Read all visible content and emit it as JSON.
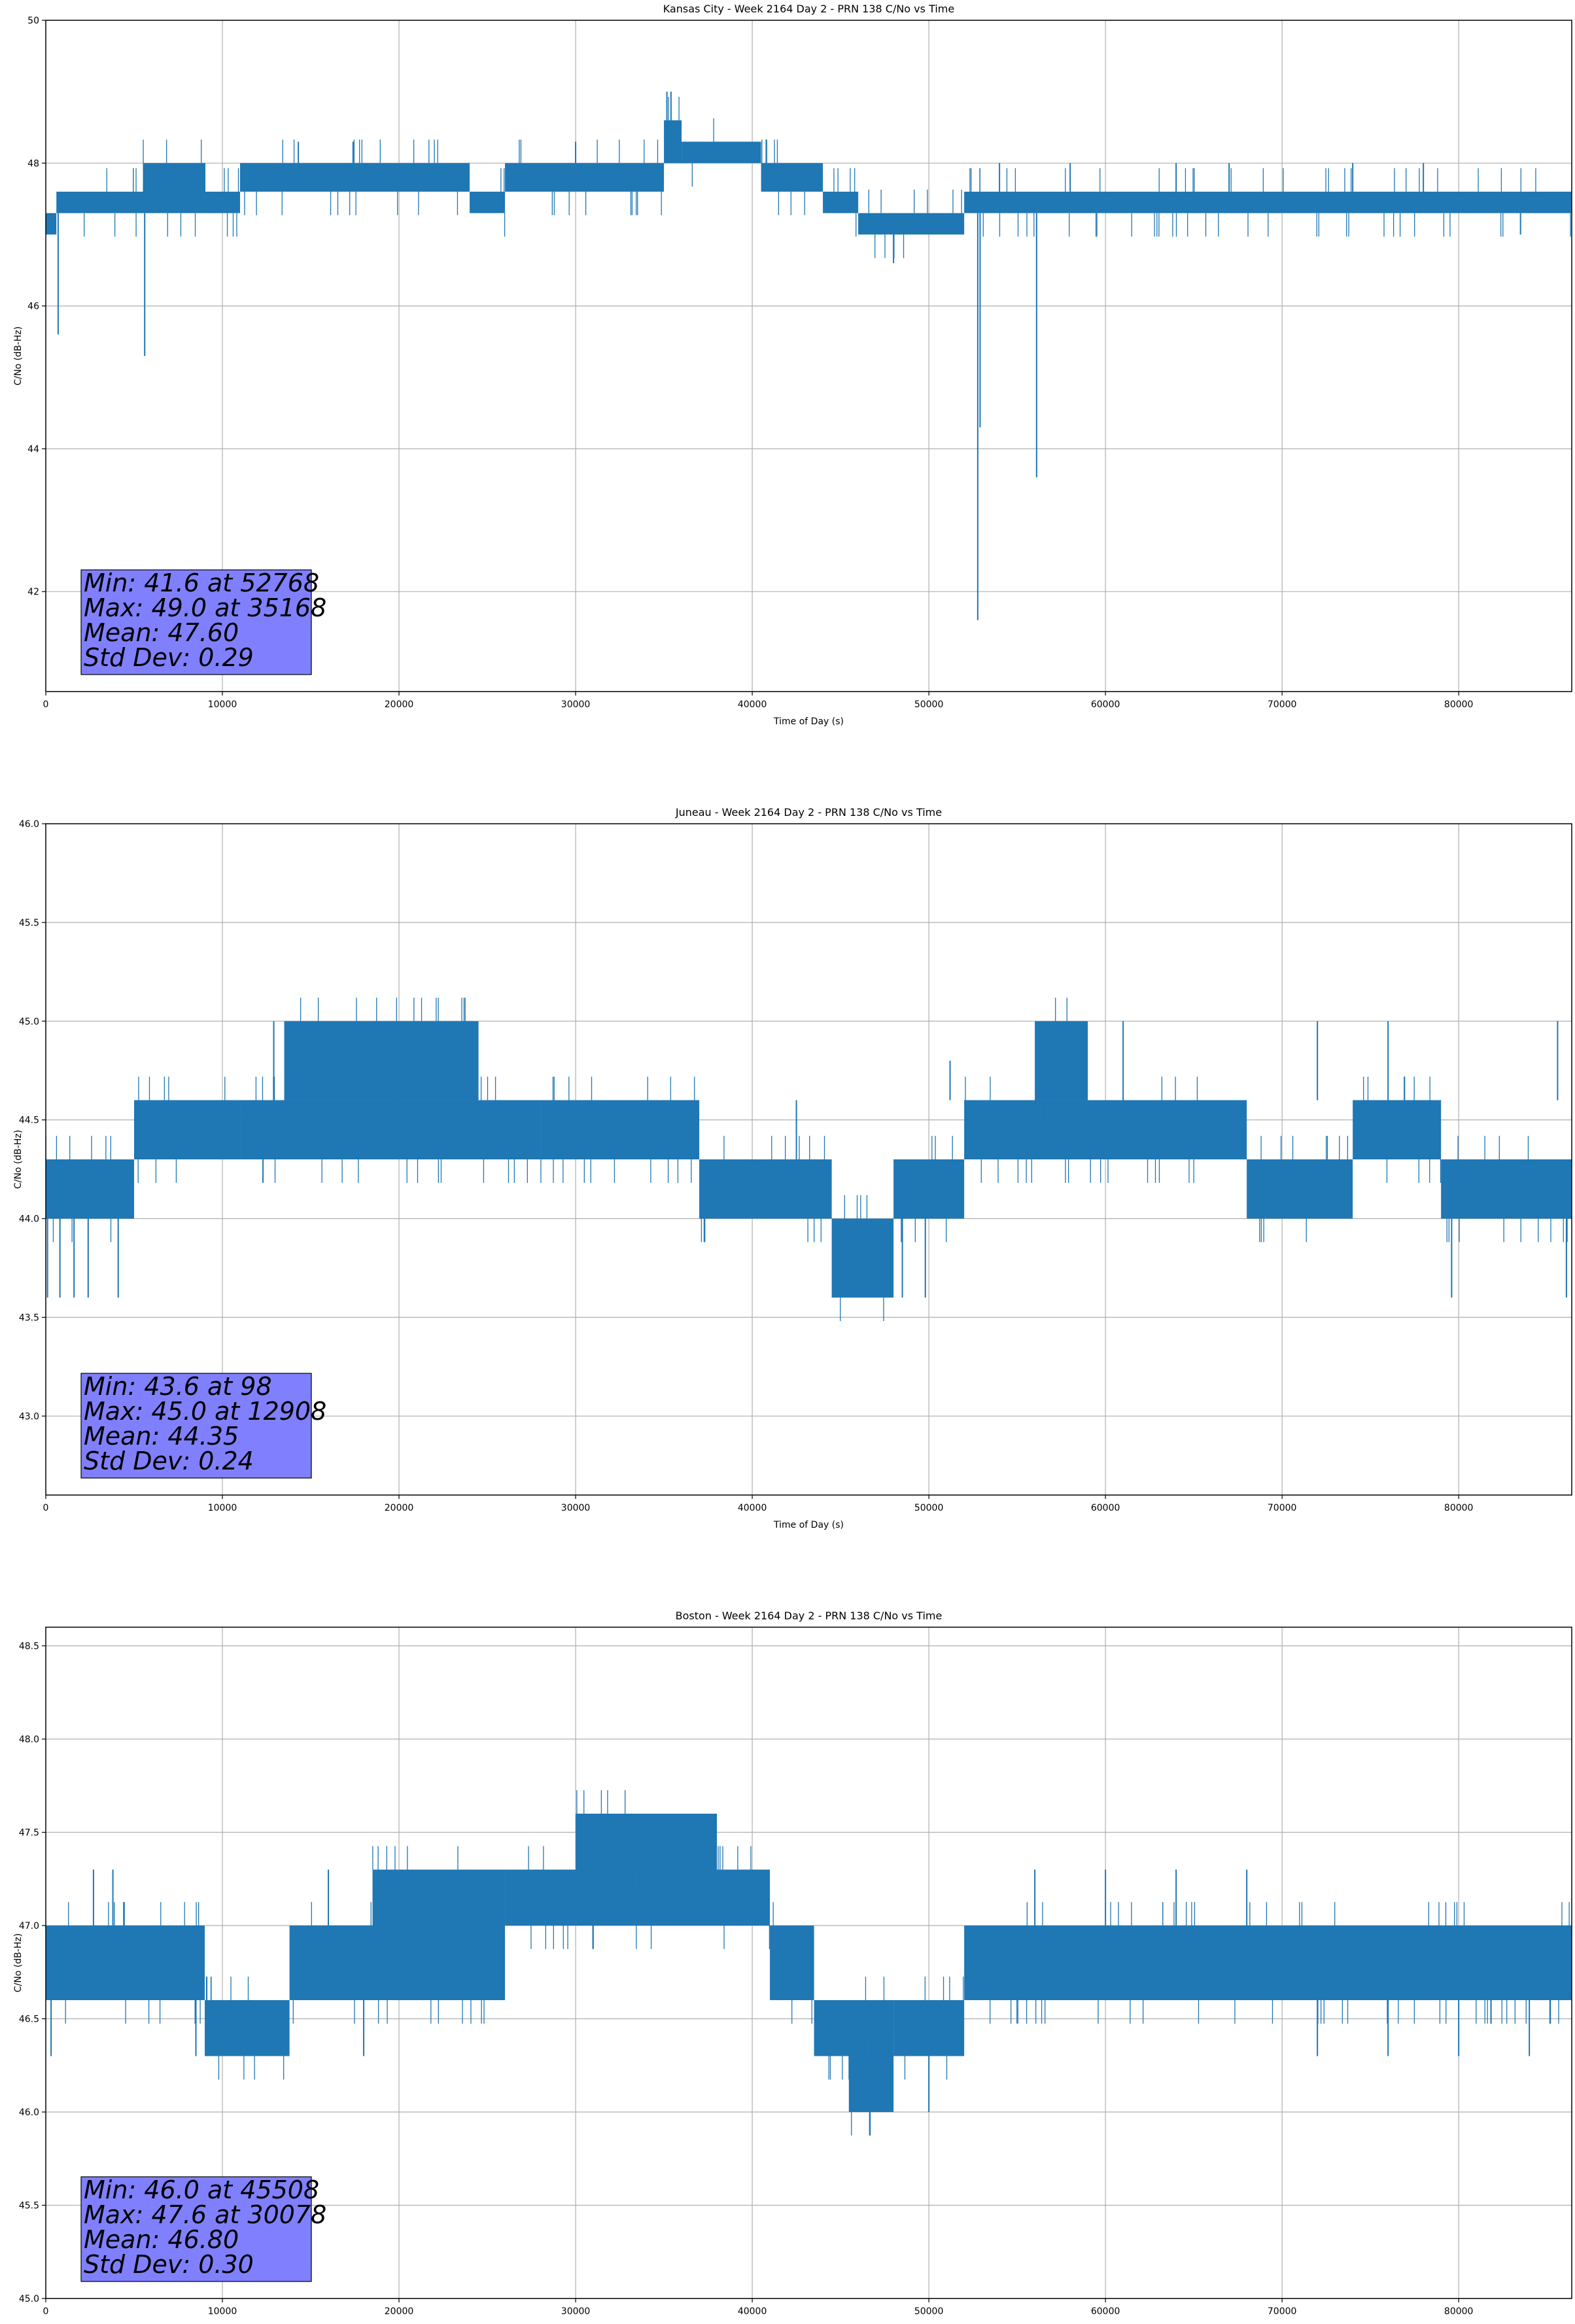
{
  "figure": {
    "color_series": "#1f77b4",
    "color_stats_box": "#8080ff",
    "color_grid": "#b0b0b0"
  },
  "chart_data": [
    {
      "type": "line",
      "title": "Kansas City - Week 2164 Day 2 - PRN 138 C/No vs Time",
      "xlabel": "Time of Day (s)",
      "ylabel": "C/No (dB-Hz)",
      "xlim": [
        0,
        86400
      ],
      "ylim": [
        40.6,
        50
      ],
      "xticks": [
        0,
        10000,
        20000,
        30000,
        40000,
        50000,
        60000,
        70000,
        80000
      ],
      "yticks": [
        42,
        44,
        46,
        48,
        50
      ],
      "ytick_decimals": 0,
      "grid": true,
      "stats": [
        "Min: 41.6 at 52768",
        "Max: 49.0 at 35168",
        "Mean: 47.60",
        "Std Dev: 0.29"
      ],
      "bands": [
        {
          "x": [
            0,
            600
          ],
          "y": [
            47.0,
            47.3
          ]
        },
        {
          "x": [
            600,
            2500
          ],
          "y": [
            47.3,
            47.6
          ]
        },
        {
          "x": [
            2500,
            5500
          ],
          "y": [
            47.3,
            47.6
          ]
        },
        {
          "x": [
            5500,
            9000
          ],
          "y": [
            47.3,
            48.0
          ]
        },
        {
          "x": [
            9000,
            11000
          ],
          "y": [
            47.3,
            47.6
          ]
        },
        {
          "x": [
            11000,
            14000
          ],
          "y": [
            47.6,
            48.0
          ]
        },
        {
          "x": [
            14000,
            24000
          ],
          "y": [
            47.6,
            48.0
          ]
        },
        {
          "x": [
            24000,
            26000
          ],
          "y": [
            47.3,
            47.6
          ]
        },
        {
          "x": [
            26000,
            30000
          ],
          "y": [
            47.6,
            48.0
          ]
        },
        {
          "x": [
            30000,
            35000
          ],
          "y": [
            47.6,
            48.0
          ]
        },
        {
          "x": [
            35000,
            36000
          ],
          "y": [
            48.0,
            48.6
          ]
        },
        {
          "x": [
            36000,
            40500
          ],
          "y": [
            48.0,
            48.3
          ]
        },
        {
          "x": [
            40500,
            44000
          ],
          "y": [
            47.6,
            48.0
          ]
        },
        {
          "x": [
            44000,
            46000
          ],
          "y": [
            47.3,
            47.6
          ]
        },
        {
          "x": [
            46000,
            48000
          ],
          "y": [
            47.0,
            47.3
          ]
        },
        {
          "x": [
            48000,
            52000
          ],
          "y": [
            47.0,
            47.3
          ]
        },
        {
          "x": [
            52000,
            86400
          ],
          "y": [
            47.3,
            47.6
          ]
        }
      ],
      "spikes": [
        {
          "x": 700,
          "y": [
            45.6,
            47.3
          ]
        },
        {
          "x": 5600,
          "y": [
            45.3,
            47.3
          ]
        },
        {
          "x": 48000,
          "y": [
            46.6,
            47.3
          ]
        },
        {
          "x": 52768,
          "y": [
            41.6,
            47.3
          ]
        },
        {
          "x": 52900,
          "y": [
            44.3,
            47.3
          ]
        },
        {
          "x": 56100,
          "y": [
            43.6,
            47.3
          ]
        },
        {
          "x": 35168,
          "y": [
            48.0,
            49.0
          ]
        },
        {
          "x": 35400,
          "y": [
            48.0,
            49.0
          ]
        },
        {
          "x": 9000,
          "y": [
            47.6,
            48.0
          ]
        },
        {
          "x": 14300,
          "y": [
            48.0,
            48.3
          ]
        },
        {
          "x": 17400,
          "y": [
            48.0,
            48.3
          ]
        },
        {
          "x": 30000,
          "y": [
            48.0,
            48.3
          ]
        },
        {
          "x": 64000,
          "y": [
            47.6,
            48.0
          ]
        },
        {
          "x": 67000,
          "y": [
            47.6,
            48.0
          ]
        },
        {
          "x": 74000,
          "y": [
            47.6,
            48.0
          ]
        },
        {
          "x": 78000,
          "y": [
            47.6,
            48.0
          ]
        },
        {
          "x": 83500,
          "y": [
            47.0,
            47.3
          ]
        },
        {
          "x": 54000,
          "y": [
            47.6,
            48.0
          ]
        },
        {
          "x": 58000,
          "y": [
            47.6,
            48.0
          ]
        }
      ]
    },
    {
      "type": "line",
      "title": "Juneau - Week 2164 Day 2 - PRN 138 C/No vs Time",
      "xlabel": "Time of Day (s)",
      "ylabel": "C/No (dB-Hz)",
      "xlim": [
        0,
        86400
      ],
      "ylim": [
        42.6,
        46
      ],
      "xticks": [
        0,
        10000,
        20000,
        30000,
        40000,
        50000,
        60000,
        70000,
        80000
      ],
      "yticks": [
        43.0,
        43.5,
        44.0,
        44.5,
        45.0,
        45.5,
        46.0
      ],
      "ytick_decimals": 1,
      "grid": true,
      "stats": [
        "Min: 43.6 at 98",
        "Max: 45.0 at 12908",
        "Mean: 44.35",
        "Std Dev: 0.24"
      ],
      "bands": [
        {
          "x": [
            0,
            5000
          ],
          "y": [
            44.0,
            44.3
          ]
        },
        {
          "x": [
            5000,
            11000
          ],
          "y": [
            44.3,
            44.6
          ]
        },
        {
          "x": [
            11000,
            28000
          ],
          "y": [
            44.3,
            44.6
          ]
        },
        {
          "x": [
            13500,
            24500
          ],
          "y": [
            44.6,
            45.0
          ]
        },
        {
          "x": [
            28000,
            37000
          ],
          "y": [
            44.3,
            44.6
          ]
        },
        {
          "x": [
            37000,
            44500
          ],
          "y": [
            44.0,
            44.3
          ]
        },
        {
          "x": [
            44500,
            48000
          ],
          "y": [
            43.6,
            44.0
          ]
        },
        {
          "x": [
            48000,
            52000
          ],
          "y": [
            44.0,
            44.3
          ]
        },
        {
          "x": [
            52000,
            68000
          ],
          "y": [
            44.3,
            44.6
          ]
        },
        {
          "x": [
            56000,
            59000
          ],
          "y": [
            44.6,
            45.0
          ]
        },
        {
          "x": [
            68000,
            74000
          ],
          "y": [
            44.0,
            44.3
          ]
        },
        {
          "x": [
            74000,
            79000
          ],
          "y": [
            44.3,
            44.6
          ]
        },
        {
          "x": [
            79000,
            86400
          ],
          "y": [
            44.0,
            44.3
          ]
        }
      ],
      "spikes": [
        {
          "x": 98,
          "y": [
            43.6,
            44.3
          ]
        },
        {
          "x": 800,
          "y": [
            43.6,
            44.0
          ]
        },
        {
          "x": 1600,
          "y": [
            43.6,
            44.0
          ]
        },
        {
          "x": 2400,
          "y": [
            43.6,
            44.0
          ]
        },
        {
          "x": 4100,
          "y": [
            43.6,
            44.0
          ]
        },
        {
          "x": 12908,
          "y": [
            44.6,
            45.0
          ]
        },
        {
          "x": 42500,
          "y": [
            44.0,
            44.6
          ]
        },
        {
          "x": 48500,
          "y": [
            43.6,
            44.0
          ]
        },
        {
          "x": 49800,
          "y": [
            43.6,
            44.0
          ]
        },
        {
          "x": 51200,
          "y": [
            44.6,
            44.8
          ]
        },
        {
          "x": 61000,
          "y": [
            44.6,
            45.0
          ]
        },
        {
          "x": 72000,
          "y": [
            44.6,
            45.0
          ]
        },
        {
          "x": 76000,
          "y": [
            44.6,
            45.0
          ]
        },
        {
          "x": 79600,
          "y": [
            43.6,
            44.0
          ]
        },
        {
          "x": 85600,
          "y": [
            44.6,
            45.0
          ]
        },
        {
          "x": 86100,
          "y": [
            43.6,
            44.0
          ]
        }
      ]
    },
    {
      "type": "line",
      "title": "Boston - Week 2164 Day 2 - PRN 138 C/No vs Time",
      "xlabel": "Time of Day (s)",
      "ylabel": "C/No (dB-Hz)",
      "xlim": [
        0,
        86400
      ],
      "ylim": [
        45.0,
        48.6
      ],
      "xticks": [
        0,
        10000,
        20000,
        30000,
        40000,
        50000,
        60000,
        70000,
        80000
      ],
      "yticks": [
        45.0,
        45.5,
        46.0,
        46.5,
        47.0,
        47.5,
        48.0,
        48.5
      ],
      "ytick_decimals": 1,
      "grid": true,
      "stats": [
        "Min: 46.0 at 45508",
        "Max: 47.6 at 30078",
        "Mean: 46.80",
        "Std Dev: 0.30"
      ],
      "bands": [
        {
          "x": [
            0,
            9000
          ],
          "y": [
            46.6,
            47.0
          ]
        },
        {
          "x": [
            9000,
            13800
          ],
          "y": [
            46.3,
            46.6
          ]
        },
        {
          "x": [
            13800,
            26000
          ],
          "y": [
            46.6,
            47.0
          ]
        },
        {
          "x": [
            18500,
            26000
          ],
          "y": [
            47.0,
            47.3
          ]
        },
        {
          "x": [
            26000,
            30000
          ],
          "y": [
            47.0,
            47.3
          ]
        },
        {
          "x": [
            30000,
            41000
          ],
          "y": [
            47.0,
            47.3
          ]
        },
        {
          "x": [
            30000,
            38000
          ],
          "y": [
            47.3,
            47.6
          ]
        },
        {
          "x": [
            41000,
            43500
          ],
          "y": [
            46.6,
            47.0
          ]
        },
        {
          "x": [
            43500,
            48000
          ],
          "y": [
            46.3,
            46.6
          ]
        },
        {
          "x": [
            45500,
            48000
          ],
          "y": [
            46.0,
            46.3
          ]
        },
        {
          "x": [
            48000,
            52000
          ],
          "y": [
            46.3,
            46.6
          ]
        },
        {
          "x": [
            52000,
            86400
          ],
          "y": [
            46.6,
            47.0
          ]
        },
        {
          "x": 86400,
          "y": [
            46.3,
            46.6
          ]
        }
      ],
      "spikes": [
        {
          "x": 300,
          "y": [
            46.3,
            46.6
          ]
        },
        {
          "x": 2700,
          "y": [
            47.0,
            47.3
          ]
        },
        {
          "x": 3800,
          "y": [
            47.0,
            47.3
          ]
        },
        {
          "x": 8500,
          "y": [
            46.3,
            46.6
          ]
        },
        {
          "x": 16000,
          "y": [
            47.0,
            47.3
          ]
        },
        {
          "x": 18000,
          "y": [
            46.3,
            46.6
          ]
        },
        {
          "x": 30078,
          "y": [
            47.3,
            47.6
          ]
        },
        {
          "x": 45508,
          "y": [
            46.0,
            46.3
          ]
        },
        {
          "x": 50000,
          "y": [
            46.0,
            46.3
          ]
        },
        {
          "x": 56000,
          "y": [
            47.0,
            47.3
          ]
        },
        {
          "x": 60000,
          "y": [
            47.0,
            47.3
          ]
        },
        {
          "x": 64000,
          "y": [
            47.0,
            47.3
          ]
        },
        {
          "x": 68000,
          "y": [
            47.0,
            47.3
          ]
        },
        {
          "x": 72000,
          "y": [
            46.3,
            46.6
          ]
        },
        {
          "x": 76000,
          "y": [
            46.3,
            46.6
          ]
        },
        {
          "x": 80000,
          "y": [
            46.3,
            46.6
          ]
        },
        {
          "x": 84000,
          "y": [
            46.3,
            46.6
          ]
        }
      ]
    }
  ]
}
